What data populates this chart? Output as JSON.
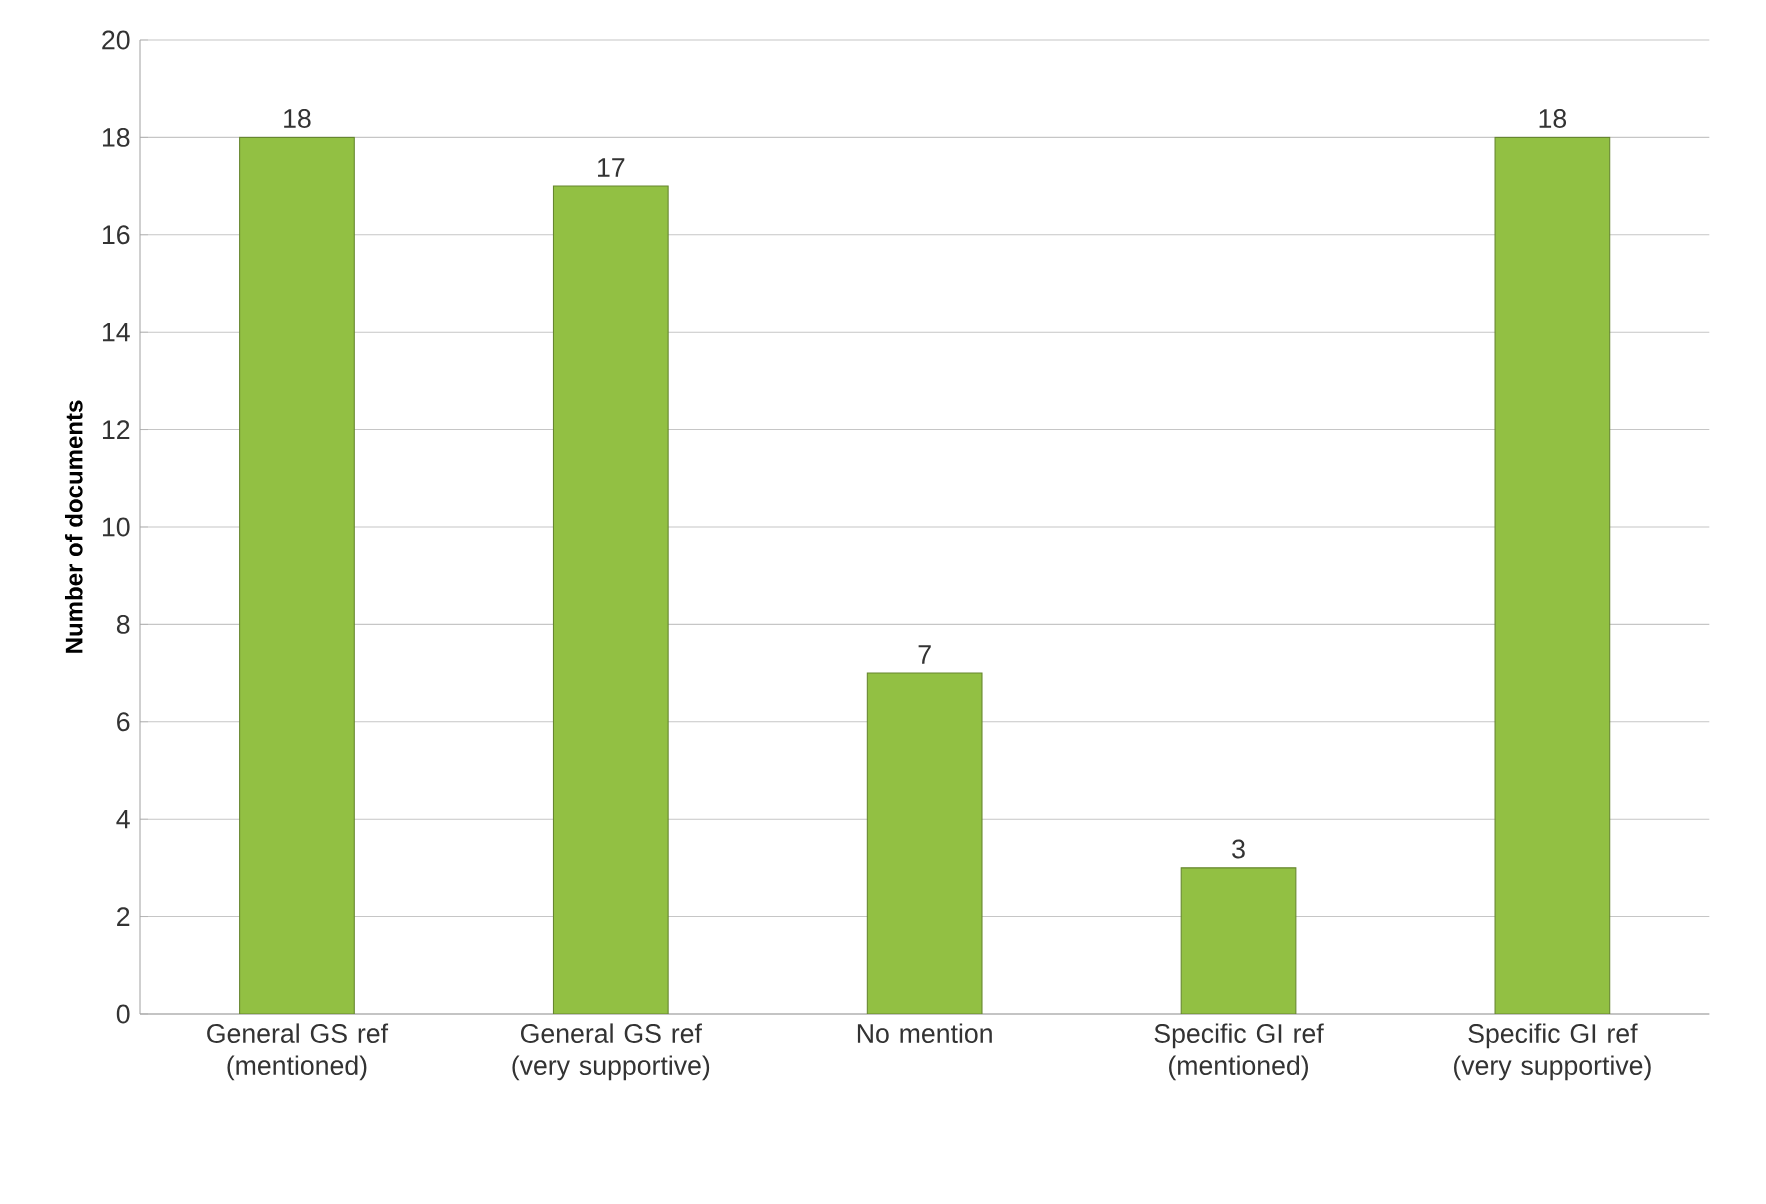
{
  "chart_data": {
    "type": "bar",
    "ylabel": "Number of documents",
    "categories": [
      "General GS ref (mentioned)",
      "General GS ref (very supportive)",
      "No mention",
      "Specific GI ref (mentioned)",
      "Specific GI ref (very supportive)"
    ],
    "values": [
      18,
      17,
      7,
      3,
      18
    ],
    "color": "#92c043",
    "ylim": [
      0,
      20
    ],
    "yticks": [
      0,
      2,
      4,
      6,
      8,
      10,
      12,
      14,
      16,
      18,
      20
    ],
    "grid": "y",
    "data_labels": true
  }
}
